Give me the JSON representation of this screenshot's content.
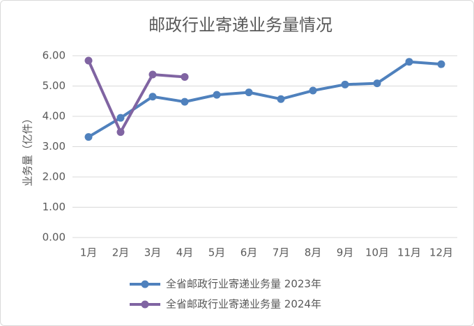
{
  "chart_data": {
    "type": "line",
    "title": "邮政行业寄递业务量情况",
    "y_label": "业务量（亿件）",
    "categories": [
      "1月",
      "2月",
      "3月",
      "4月",
      "5月",
      "6月",
      "7月",
      "8月",
      "9月",
      "10月",
      "11月",
      "12月"
    ],
    "series": [
      {
        "name": "全省邮政行业寄递业务量 2023年",
        "color": "#4f81bd",
        "values": [
          3.32,
          3.95,
          4.65,
          4.48,
          4.71,
          4.79,
          4.57,
          4.85,
          5.05,
          5.09,
          5.8,
          5.72
        ]
      },
      {
        "name": "全省邮政行业寄递业务量 2024年",
        "color": "#8064a2",
        "values": [
          5.84,
          3.48,
          5.38,
          5.3,
          null,
          null,
          null,
          null,
          null,
          null,
          null,
          null
        ]
      }
    ],
    "ylim": [
      0,
      6
    ],
    "yticks": [
      {
        "value": 0,
        "label": "0.00"
      },
      {
        "value": 1,
        "label": "1.00"
      },
      {
        "value": 2,
        "label": "2.00"
      },
      {
        "value": 3,
        "label": "3.00"
      },
      {
        "value": 4,
        "label": "4.00"
      },
      {
        "value": 5,
        "label": "5.00"
      },
      {
        "value": 6,
        "label": "6.00"
      }
    ],
    "grid": true,
    "legend": "bottom"
  }
}
